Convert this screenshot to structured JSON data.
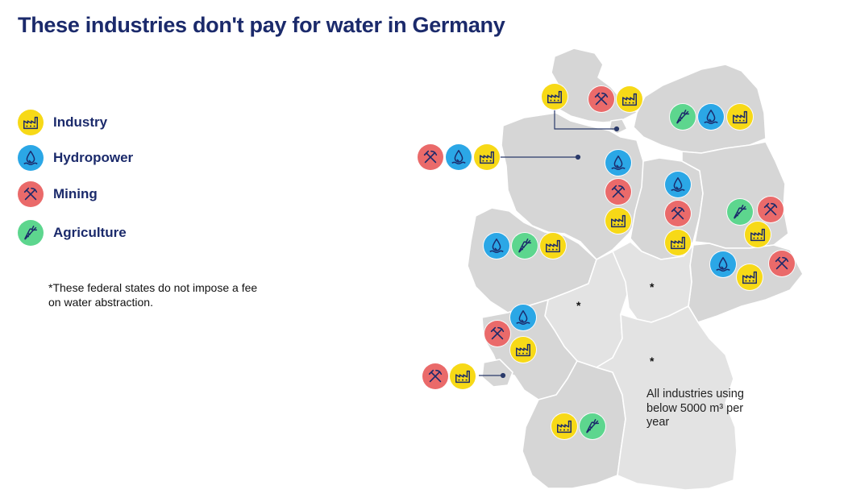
{
  "title": "These industries don't pay for water in Germany",
  "legend": [
    {
      "type": "industry",
      "label": "Industry"
    },
    {
      "type": "hydropower",
      "label": "Hydropower"
    },
    {
      "type": "mining",
      "label": "Mining"
    },
    {
      "type": "agriculture",
      "label": "Agriculture"
    }
  ],
  "footnote": "*These federal states do not impose a fee on water abstraction.",
  "note": "All industries using below 5000 m³ per year",
  "star_marker": "*",
  "colors": {
    "industry": "#f7d917",
    "hydropower": "#2ba7e6",
    "mining": "#ea6a6a",
    "agriculture": "#5dd68e",
    "map_fill": "#d6d6d6",
    "map_fill_light": "#e3e3e3",
    "border": "#ffffff",
    "title": "#1b2a6b",
    "icon_stroke": "#1b2a6b"
  },
  "icon_names": {
    "industry": "factory-icon",
    "hydropower": "water-drop-icon",
    "mining": "pickaxe-hammer-icon",
    "agriculture": "carrot-icon"
  }
}
